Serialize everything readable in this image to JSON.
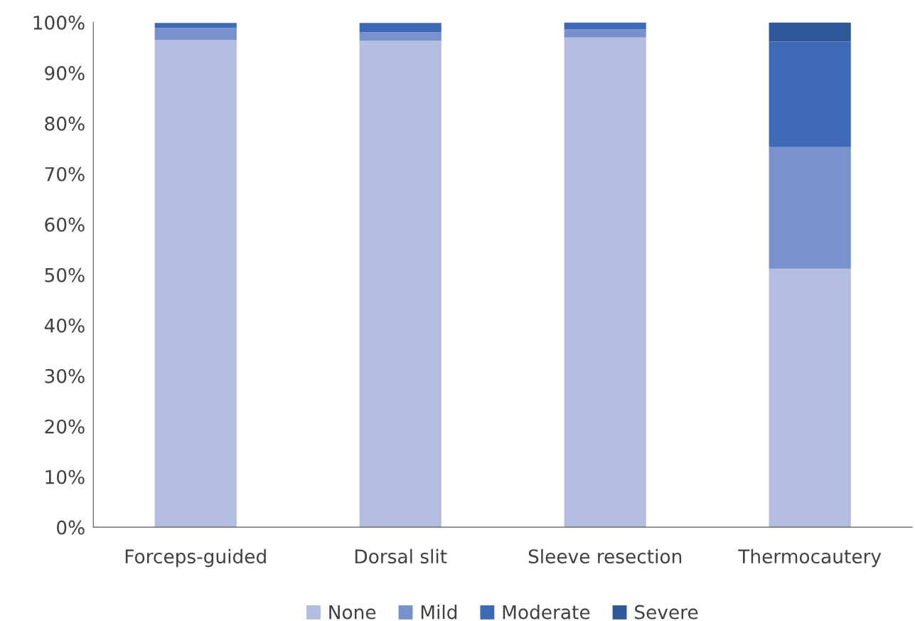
{
  "chart_data": {
    "type": "bar",
    "stacked": true,
    "categories": [
      "Forceps-guided",
      "Dorsal slit",
      "Sleeve resection",
      "Thermocautery"
    ],
    "series": [
      {
        "name": "None",
        "color": "#b2bddf",
        "values": [
          96.5,
          96.4,
          97.0,
          51.2
        ]
      },
      {
        "name": "Mild",
        "color": "#7891cd",
        "values": [
          2.4,
          1.6,
          1.6,
          24.1
        ]
      },
      {
        "name": "Moderate",
        "color": "#3e69b7",
        "values": [
          1.0,
          1.9,
          1.4,
          20.9
        ]
      },
      {
        "name": "Severe",
        "color": "#305797",
        "values": [
          null,
          null,
          0.0,
          3.8
        ]
      }
    ],
    "ylim": [
      0,
      100
    ],
    "yticks": [
      {
        "value": 0,
        "label": "0%"
      },
      {
        "value": 10,
        "label": "10%"
      },
      {
        "value": 20,
        "label": "20%"
      },
      {
        "value": 30,
        "label": "30%"
      },
      {
        "value": 40,
        "label": "40%"
      },
      {
        "value": 50,
        "label": "50%"
      },
      {
        "value": 60,
        "label": "60%"
      },
      {
        "value": 70,
        "label": "70%"
      },
      {
        "value": 80,
        "label": "80%"
      },
      {
        "value": 90,
        "label": "90%"
      },
      {
        "value": 100,
        "label": "100%"
      }
    ],
    "grid": false,
    "legend": "bottom"
  }
}
